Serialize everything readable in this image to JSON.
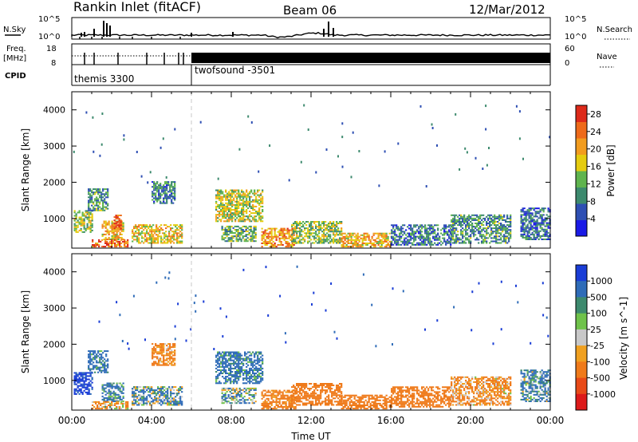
{
  "header": {
    "station": "Rankin Inlet (fitACF)",
    "beam": "Beam 06",
    "date": "12/Mar/2012"
  },
  "strips": {
    "nsky_label": "N.Sky",
    "nsky_ticks": [
      "10^5",
      "10^0"
    ],
    "nsearch_label": "N.Search",
    "nsearch_ticks": [
      "10^5",
      "10^0"
    ],
    "freq_label": "Freq.",
    "freq_unit": "[MHz]",
    "freq_ticks": [
      "18",
      "8"
    ],
    "nave_label": "Nave",
    "nave_ticks": [
      "60",
      "0"
    ],
    "cpid_label": "CPID",
    "programs": [
      {
        "name": "themis 3300",
        "start_hour": 0,
        "end_hour": 6
      },
      {
        "name": "twofsound -3501",
        "start_hour": 6,
        "end_hour": 24
      }
    ]
  },
  "colors": {
    "power_scale": [
      "#1a1ae6",
      "#2e4fb3",
      "#3d8a6e",
      "#5fb44e",
      "#e5cc10",
      "#f29c1f",
      "#ee6a1a",
      "#dd2a1a"
    ],
    "velocity_scale": [
      "#1a3dd6",
      "#2f6cb8",
      "#3d8a6e",
      "#6fc24a",
      "#c8c8c8",
      "#f0a020",
      "#ef7a1a",
      "#e84a18",
      "#dd1a1a"
    ]
  },
  "chart_data": [
    {
      "type": "heatmap",
      "name": "power",
      "xlabel": "",
      "ylabel": "Slant Range [km]",
      "xlim": [
        0,
        24
      ],
      "ylim": [
        180,
        4500
      ],
      "x_tick_labels": [
        "00:00",
        "04:00",
        "08:00",
        "12:00",
        "16:00",
        "20:00",
        "00:00"
      ],
      "y_ticks": [
        1000,
        2000,
        3000,
        4000
      ],
      "colorbar_label": "Power [dB]",
      "colorbar_ticks": [
        "4",
        "8",
        "12",
        "16",
        "20",
        "24",
        "28"
      ],
      "colorbar_range": [
        0,
        30
      ],
      "regions": [
        {
          "t0": 0.1,
          "t1": 1.0,
          "r0": 600,
          "r1": 1200,
          "level": 14
        },
        {
          "t0": 0.8,
          "t1": 1.8,
          "r0": 1200,
          "r1": 1800,
          "level": 10
        },
        {
          "t0": 1.5,
          "t1": 2.6,
          "r0": 400,
          "r1": 900,
          "level": 20
        },
        {
          "t0": 2.1,
          "t1": 2.5,
          "r0": 700,
          "r1": 1100,
          "level": 26
        },
        {
          "t0": 3.0,
          "t1": 5.5,
          "r0": 300,
          "r1": 800,
          "level": 18
        },
        {
          "t0": 4.0,
          "t1": 5.2,
          "r0": 1400,
          "r1": 2000,
          "level": 9
        },
        {
          "t0": 1.0,
          "t1": 2.8,
          "r0": 200,
          "r1": 400,
          "level": 24
        },
        {
          "t0": 7.2,
          "t1": 9.6,
          "r0": 900,
          "r1": 1800,
          "level": 16
        },
        {
          "t0": 7.5,
          "t1": 9.2,
          "r0": 350,
          "r1": 800,
          "level": 12
        },
        {
          "t0": 9.5,
          "t1": 11.2,
          "r0": 200,
          "r1": 700,
          "level": 22
        },
        {
          "t0": 11.0,
          "t1": 13.5,
          "r0": 300,
          "r1": 900,
          "level": 14
        },
        {
          "t0": 13.5,
          "t1": 16.0,
          "r0": 200,
          "r1": 600,
          "level": 20
        },
        {
          "t0": 16.0,
          "t1": 19.0,
          "r0": 250,
          "r1": 800,
          "level": 8
        },
        {
          "t0": 19.0,
          "t1": 22.0,
          "r0": 300,
          "r1": 1100,
          "level": 10
        },
        {
          "t0": 22.5,
          "t1": 24.0,
          "r0": 400,
          "r1": 1300,
          "level": 7
        }
      ]
    },
    {
      "type": "heatmap",
      "name": "velocity",
      "xlabel": "Time UT",
      "ylabel": "Slant Range [km]",
      "xlim": [
        0,
        24
      ],
      "ylim": [
        180,
        4500
      ],
      "x_tick_labels": [
        "00:00",
        "04:00",
        "08:00",
        "12:00",
        "16:00",
        "20:00",
        "00:00"
      ],
      "y_ticks": [
        1000,
        2000,
        3000,
        4000
      ],
      "colorbar_label": "Velocity [m s^-1]",
      "colorbar_ticks": [
        "1000",
        "500",
        "100",
        "25",
        "-25",
        "-100",
        "-500",
        "-1000"
      ],
      "colorbar_range": [
        -1000,
        1000
      ],
      "regions": [
        {
          "t0": 0.1,
          "t1": 1.0,
          "r0": 600,
          "r1": 1200,
          "level": 600
        },
        {
          "t0": 0.8,
          "t1": 1.8,
          "r0": 1200,
          "r1": 1800,
          "level": 200
        },
        {
          "t0": 1.5,
          "t1": 2.6,
          "r0": 400,
          "r1": 900,
          "level": 150
        },
        {
          "t0": 3.0,
          "t1": 5.5,
          "r0": 300,
          "r1": 800,
          "level": 80
        },
        {
          "t0": 4.0,
          "t1": 5.2,
          "r0": 1400,
          "r1": 2000,
          "level": -150
        },
        {
          "t0": 1.0,
          "t1": 2.8,
          "r0": 200,
          "r1": 400,
          "level": -60
        },
        {
          "t0": 7.2,
          "t1": 9.6,
          "r0": 900,
          "r1": 1800,
          "level": 180
        },
        {
          "t0": 7.5,
          "t1": 9.2,
          "r0": 350,
          "r1": 800,
          "level": 60
        },
        {
          "t0": 9.5,
          "t1": 11.2,
          "r0": 200,
          "r1": 700,
          "level": -200
        },
        {
          "t0": 11.0,
          "t1": 13.5,
          "r0": 300,
          "r1": 900,
          "level": -300
        },
        {
          "t0": 13.5,
          "t1": 16.0,
          "r0": 200,
          "r1": 600,
          "level": -250
        },
        {
          "t0": 16.0,
          "t1": 19.0,
          "r0": 250,
          "r1": 800,
          "level": -350
        },
        {
          "t0": 19.0,
          "t1": 22.0,
          "r0": 300,
          "r1": 1100,
          "level": -120
        },
        {
          "t0": 22.5,
          "t1": 24.0,
          "r0": 400,
          "r1": 1300,
          "level": 120
        }
      ]
    }
  ]
}
